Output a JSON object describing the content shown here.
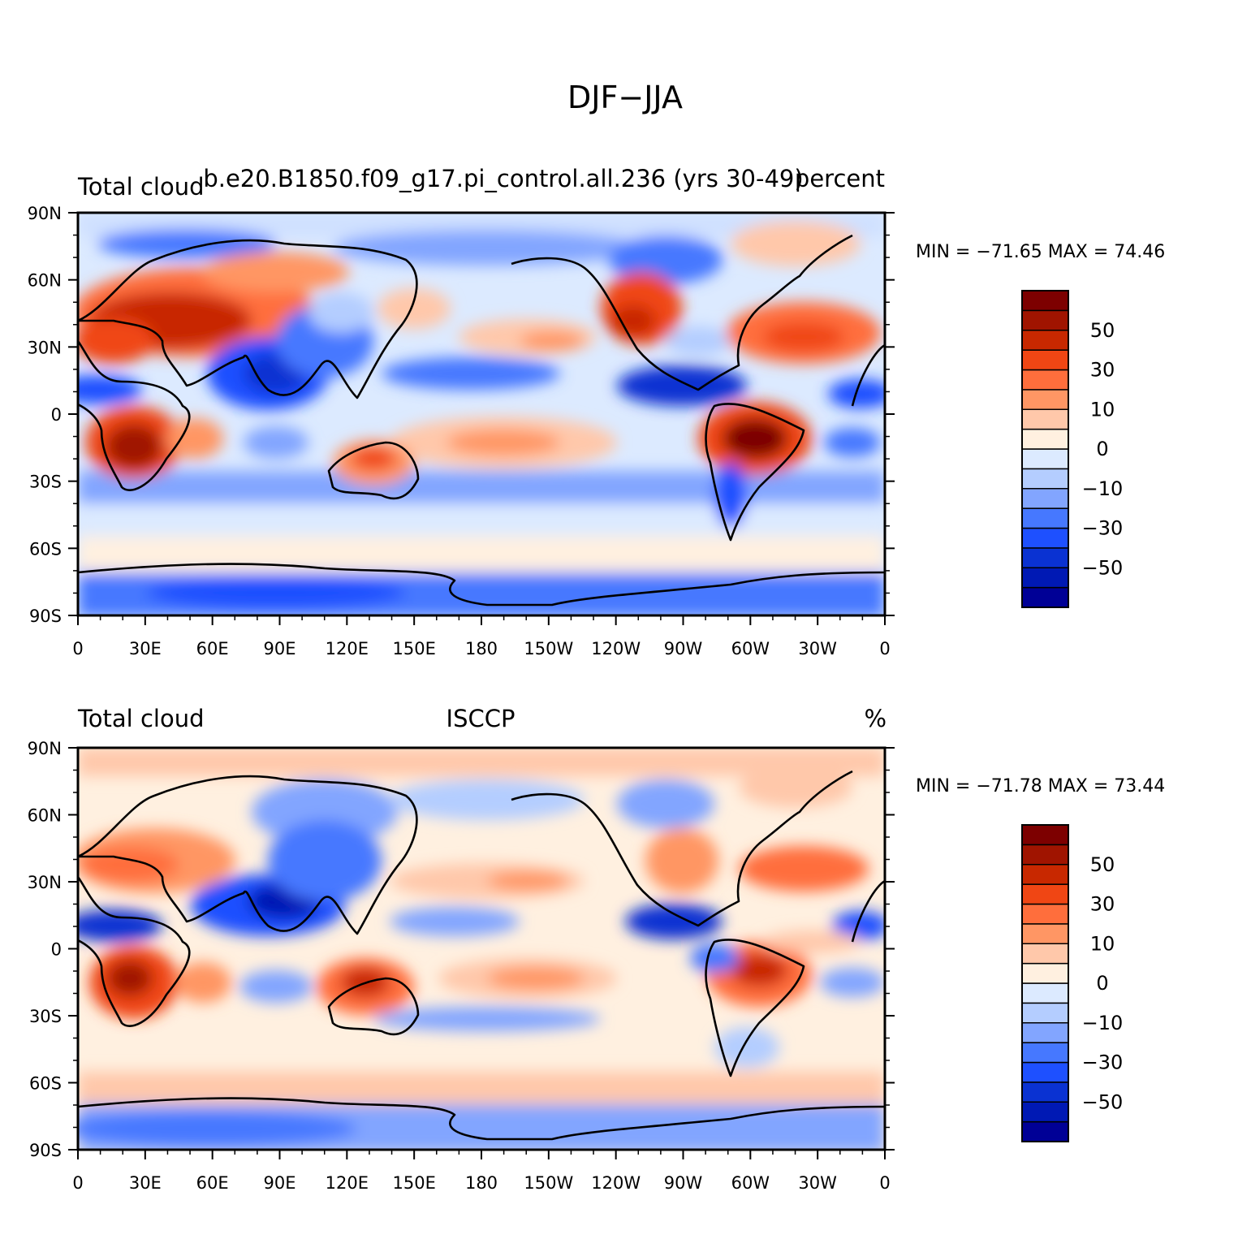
{
  "figure": {
    "title": "DJF−JJA"
  },
  "chart_data": [
    {
      "type": "heatmap",
      "subtype": "global-contour-map",
      "left_title": "Total cloud",
      "center_title": "b.e20.B1850.f09_g17.pi_control.all.236 (yrs 30-49)",
      "right_title": "percent",
      "min_label": "MIN = −71.65 MAX =  74.46",
      "min": -71.65,
      "max": 74.46,
      "lat_ticks": [
        "90N",
        "60N",
        "30N",
        "0",
        "30S",
        "60S",
        "90S"
      ],
      "lon_ticks": [
        "0",
        "30E",
        "60E",
        "90E",
        "120E",
        "150E",
        "180",
        "150W",
        "120W",
        "90W",
        "60W",
        "30W",
        "0"
      ],
      "colorbar_labels": [
        "50",
        "30",
        "10",
        "0",
        "−10",
        "−30",
        "−50"
      ]
    },
    {
      "type": "heatmap",
      "subtype": "global-contour-map",
      "left_title": "Total cloud",
      "center_title": "ISCCP",
      "right_title": "%",
      "min_label": "MIN = −71.78 MAX =  73.44",
      "min": -71.78,
      "max": 73.44,
      "lat_ticks": [
        "90N",
        "60N",
        "30N",
        "0",
        "30S",
        "60S",
        "90S"
      ],
      "lon_ticks": [
        "0",
        "30E",
        "60E",
        "90E",
        "120E",
        "150E",
        "180",
        "150W",
        "120W",
        "90W",
        "60W",
        "30W",
        "0"
      ],
      "colorbar_labels": [
        "50",
        "30",
        "10",
        "0",
        "−10",
        "−30",
        "−50"
      ]
    }
  ],
  "colors": {
    "scale": [
      "#000096",
      "#0019b4",
      "#0a32d2",
      "#1e50ff",
      "#4678ff",
      "#82a5ff",
      "#b4cdff",
      "#dceaff",
      "#fff0e0",
      "#ffc8aa",
      "#ff9664",
      "#ff6e3c",
      "#f04614",
      "#c82800",
      "#a01400",
      "#7d0000"
    ]
  }
}
